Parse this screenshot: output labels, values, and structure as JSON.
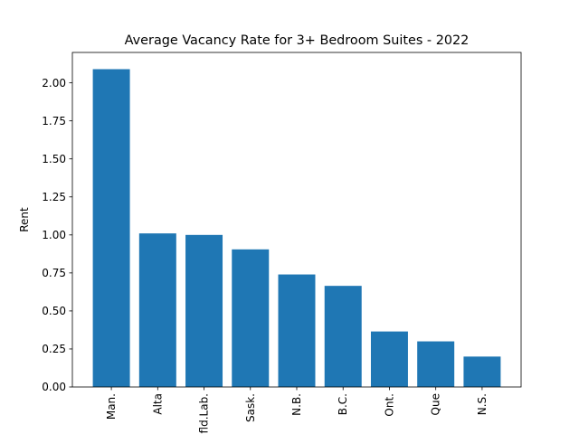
{
  "chart_data": {
    "type": "bar",
    "title": "Average Vacancy Rate for 3+ Bedroom Suites - 2022",
    "xlabel": "",
    "ylabel": "Rent",
    "categories": [
      "Man.",
      "Alta",
      "Nfld.Lab.",
      "Sask.",
      "N.B.",
      "B.C.",
      "Ont.",
      "Que",
      "N.S."
    ],
    "values": [
      2.09,
      1.01,
      1.0,
      0.905,
      0.74,
      0.665,
      0.365,
      0.3,
      0.2
    ],
    "ylim": [
      0,
      2.2
    ],
    "yticks": [
      "0.00",
      "0.25",
      "0.50",
      "0.75",
      "1.00",
      "1.25",
      "1.50",
      "1.75",
      "2.00"
    ],
    "bar_color": "#1f77b4",
    "grid": false,
    "legend": false
  }
}
